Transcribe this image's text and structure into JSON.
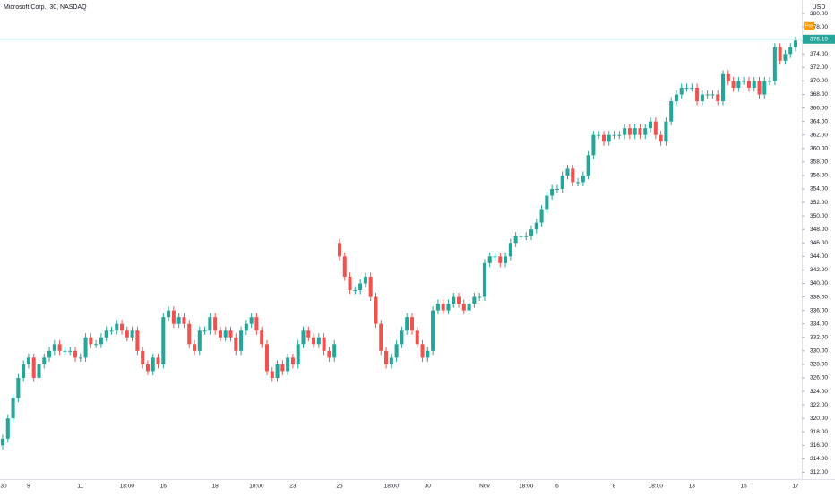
{
  "chart_data": {
    "type": "candlestick",
    "title": "Microsoft Corp., 30, NASDAQ",
    "currency": "USD",
    "up_color": "#26a69a",
    "down_color": "#ef5350",
    "pre_label": "Pre",
    "current_price": 376.19,
    "ylim": [
      311,
      382
    ],
    "yticks": [
      {
        "value": 312,
        "label": "312.00"
      },
      {
        "value": 314,
        "label": "314.00"
      },
      {
        "value": 316,
        "label": "316.00"
      },
      {
        "value": 318,
        "label": "318.00"
      },
      {
        "value": 320,
        "label": "320.00"
      },
      {
        "value": 322,
        "label": "322.00"
      },
      {
        "value": 324,
        "label": "324.00"
      },
      {
        "value": 326,
        "label": "326.00"
      },
      {
        "value": 328,
        "label": "328.00"
      },
      {
        "value": 330,
        "label": "330.00"
      },
      {
        "value": 332,
        "label": "332.00"
      },
      {
        "value": 334,
        "label": "334.00"
      },
      {
        "value": 336,
        "label": "336.00"
      },
      {
        "value": 338,
        "label": "338.00"
      },
      {
        "value": 340,
        "label": "340.00"
      },
      {
        "value": 342,
        "label": "342.00"
      },
      {
        "value": 344,
        "label": "344.00"
      },
      {
        "value": 346,
        "label": "346.00"
      },
      {
        "value": 348,
        "label": "348.00"
      },
      {
        "value": 350,
        "label": "350.00"
      },
      {
        "value": 352,
        "label": "352.00"
      },
      {
        "value": 354,
        "label": "354.00"
      },
      {
        "value": 356,
        "label": "356.00"
      },
      {
        "value": 358,
        "label": "358.00"
      },
      {
        "value": 360,
        "label": "360.00"
      },
      {
        "value": 362,
        "label": "362.00"
      },
      {
        "value": 364,
        "label": "364.00"
      },
      {
        "value": 366,
        "label": "366.00"
      },
      {
        "value": 368,
        "label": "368.00"
      },
      {
        "value": 370,
        "label": "370.00"
      },
      {
        "value": 372,
        "label": "372.00"
      },
      {
        "value": 374,
        "label": "374.00"
      },
      {
        "value": 376,
        "label": "376.00"
      },
      {
        "value": 378,
        "label": "378.00"
      },
      {
        "value": 380,
        "label": "380.00"
      }
    ],
    "categories": [
      "30",
      null,
      null,
      null,
      null,
      "9",
      null,
      null,
      null,
      null,
      null,
      null,
      null,
      null,
      null,
      "11",
      null,
      null,
      null,
      null,
      null,
      null,
      null,
      null,
      "18:00",
      null,
      null,
      null,
      null,
      null,
      null,
      "16",
      null,
      null,
      null,
      null,
      null,
      null,
      null,
      null,
      null,
      "18",
      null,
      null,
      null,
      null,
      null,
      null,
      null,
      "18:00",
      null,
      null,
      null,
      null,
      null,
      null,
      "23",
      null,
      null,
      null,
      null,
      null,
      null,
      null,
      null,
      "25",
      null,
      null,
      null,
      null,
      null,
      null,
      null,
      null,
      null,
      "18:00",
      null,
      null,
      null,
      null,
      null,
      null,
      "30",
      null,
      null,
      null,
      null,
      null,
      null,
      null,
      null,
      null,
      null,
      "Nov",
      null,
      null,
      null,
      null,
      null,
      null,
      null,
      "18:00",
      null,
      null,
      null,
      null,
      null,
      "6",
      null,
      null,
      null,
      null,
      null,
      null,
      null,
      null,
      null,
      null,
      "8",
      null,
      null,
      null,
      null,
      null,
      null,
      null,
      "18:00",
      null,
      null,
      null,
      null,
      null,
      null,
      "13",
      null,
      null,
      null,
      null,
      null,
      null,
      null,
      null,
      null,
      "15",
      null,
      null,
      null,
      null,
      null,
      null,
      null,
      null,
      null,
      "17"
    ],
    "open": [
      316,
      317,
      320,
      323,
      326,
      328,
      329,
      326,
      328,
      329,
      330,
      331,
      330,
      330,
      330,
      329,
      329,
      332,
      331,
      331,
      332,
      333,
      333,
      334,
      333,
      332,
      333,
      330,
      328,
      327,
      329,
      328,
      335,
      336,
      334,
      335,
      334,
      331,
      330,
      333,
      333,
      335,
      333,
      332,
      333,
      332,
      330,
      333,
      334,
      335,
      333,
      331,
      327,
      326,
      328,
      327,
      329,
      328,
      331,
      333,
      332,
      331,
      332,
      330,
      329,
      346,
      344,
      341,
      339,
      339,
      340,
      341,
      338,
      334,
      330,
      328,
      329,
      331,
      333,
      335,
      333,
      331,
      329,
      330,
      336,
      337,
      336,
      337,
      338,
      337,
      336,
      337,
      338,
      338,
      343,
      344,
      344,
      343,
      344,
      346,
      347,
      347,
      347,
      348,
      349,
      351,
      353,
      354,
      354,
      356,
      357,
      355,
      355,
      356,
      359,
      362,
      362,
      361,
      362,
      362,
      362,
      363,
      362,
      363,
      362,
      363,
      364,
      362,
      361,
      364,
      367,
      368,
      369,
      369,
      369,
      367,
      368,
      368,
      368,
      367,
      371,
      370,
      369,
      370,
      370,
      369,
      370,
      368,
      370,
      370,
      375,
      373,
      374,
      375
    ],
    "high": [
      317.6,
      320.6,
      323.6,
      326.6,
      328.6,
      329.6,
      329.6,
      328.6,
      329.6,
      330.6,
      331.6,
      331.6,
      330.6,
      330.6,
      330.6,
      329.6,
      332.6,
      332.6,
      331.6,
      332.6,
      333.6,
      333.6,
      334.6,
      334.6,
      333.6,
      333.6,
      333.6,
      330.6,
      328.6,
      329.6,
      329.6,
      335.6,
      336.6,
      336.6,
      335.6,
      335.6,
      334.6,
      331.6,
      333.6,
      333.6,
      335.6,
      335.6,
      333.6,
      333.6,
      333.6,
      332.6,
      333.6,
      334.6,
      335.6,
      335.6,
      333.6,
      331.6,
      327.6,
      328.6,
      328.6,
      329.6,
      329.6,
      331.6,
      333.6,
      333.6,
      332.6,
      332.6,
      332.6,
      330.6,
      331.6,
      346.6,
      344.6,
      341.6,
      339.6,
      340.6,
      341.6,
      341.6,
      338.6,
      334.6,
      330.6,
      329.6,
      331.6,
      333.6,
      335.6,
      335.6,
      333.6,
      331.6,
      330.6,
      336.6,
      337.6,
      337.6,
      337.6,
      338.6,
      338.6,
      337.6,
      337.6,
      338.6,
      338.6,
      343.6,
      344.6,
      344.6,
      344.6,
      344.6,
      346.6,
      347.6,
      347.6,
      347.6,
      348.6,
      349.6,
      351.6,
      353.6,
      354.6,
      354.6,
      356.6,
      357.6,
      357.6,
      355.6,
      356.6,
      359.6,
      362.6,
      362.6,
      362.6,
      362.6,
      362.6,
      362.6,
      363.6,
      363.6,
      363.6,
      363.6,
      363.6,
      364.6,
      364.6,
      362.6,
      364.6,
      367.6,
      368.6,
      369.6,
      369.6,
      369.6,
      369.6,
      368.6,
      368.6,
      368.6,
      368.6,
      371.6,
      371.6,
      370.6,
      370.6,
      370.6,
      370.6,
      370.6,
      370.6,
      370.6,
      370.6,
      375.6,
      375.6,
      374.6,
      375.6,
      376.6
    ],
    "low": [
      315.4,
      316.4,
      319.4,
      322.4,
      325.4,
      327.4,
      325.4,
      325.4,
      327.4,
      328.4,
      329.4,
      329.4,
      329.4,
      329.4,
      328.4,
      328.4,
      328.4,
      330.4,
      330.4,
      330.4,
      331.4,
      332.4,
      332.4,
      332.4,
      331.4,
      331.4,
      329.4,
      327.4,
      326.4,
      326.4,
      327.4,
      327.4,
      334.4,
      333.4,
      333.4,
      333.4,
      330.4,
      329.4,
      329.4,
      332.4,
      332.4,
      332.4,
      331.4,
      331.4,
      331.4,
      329.4,
      329.4,
      332.4,
      333.4,
      332.4,
      330.4,
      326.4,
      325.4,
      325.4,
      326.4,
      326.4,
      327.4,
      327.4,
      330.4,
      331.4,
      330.4,
      330.4,
      329.4,
      328.4,
      328.4,
      343.4,
      340.4,
      338.4,
      338.4,
      338.4,
      339.4,
      337.4,
      333.4,
      329.4,
      327.4,
      327.4,
      328.4,
      330.4,
      332.4,
      332.4,
      330.4,
      328.4,
      328.4,
      329.4,
      335.4,
      335.4,
      335.4,
      336.4,
      336.4,
      335.4,
      335.4,
      336.4,
      337.4,
      337.4,
      342.4,
      343.4,
      342.4,
      342.4,
      343.4,
      345.4,
      346.4,
      346.4,
      346.4,
      347.4,
      348.4,
      350.4,
      352.4,
      353.4,
      353.4,
      355.4,
      354.4,
      354.4,
      354.4,
      355.4,
      358.4,
      361.4,
      360.4,
      360.4,
      361.4,
      361.4,
      361.4,
      361.4,
      361.4,
      361.4,
      361.4,
      362.4,
      361.4,
      360.4,
      360.4,
      363.4,
      366.4,
      367.4,
      368.4,
      368.4,
      366.4,
      366.4,
      367.4,
      367.4,
      366.4,
      366.4,
      369.4,
      368.4,
      368.4,
      369.4,
      368.4,
      368.4,
      367.4,
      367.4,
      369.4,
      369.4,
      372.4,
      372.4,
      373.4,
      374.4
    ],
    "close": [
      317,
      320,
      323,
      326,
      328,
      329,
      326,
      328,
      329,
      330,
      331,
      330,
      330,
      330,
      329,
      329,
      332,
      331,
      331,
      332,
      333,
      333,
      334,
      333,
      332,
      333,
      330,
      328,
      327,
      329,
      328,
      335,
      336,
      334,
      335,
      334,
      331,
      330,
      333,
      333,
      335,
      333,
      332,
      333,
      332,
      330,
      333,
      334,
      335,
      333,
      331,
      327,
      326,
      328,
      327,
      329,
      328,
      331,
      333,
      332,
      331,
      332,
      330,
      329,
      331,
      344,
      341,
      339,
      339,
      340,
      341,
      338,
      334,
      330,
      328,
      329,
      331,
      333,
      335,
      333,
      331,
      329,
      330,
      336,
      337,
      336,
      337,
      338,
      337,
      336,
      337,
      338,
      338,
      343,
      344,
      344,
      343,
      344,
      346,
      347,
      347,
      347,
      348,
      349,
      351,
      353,
      354,
      354,
      356,
      357,
      355,
      355,
      356,
      359,
      362,
      362,
      361,
      362,
      362,
      362,
      363,
      362,
      363,
      362,
      363,
      364,
      362,
      361,
      364,
      367,
      368,
      369,
      369,
      369,
      367,
      368,
      368,
      368,
      367,
      371,
      370,
      369,
      370,
      370,
      369,
      370,
      368,
      370,
      370,
      375,
      373,
      374,
      375,
      376
    ]
  }
}
